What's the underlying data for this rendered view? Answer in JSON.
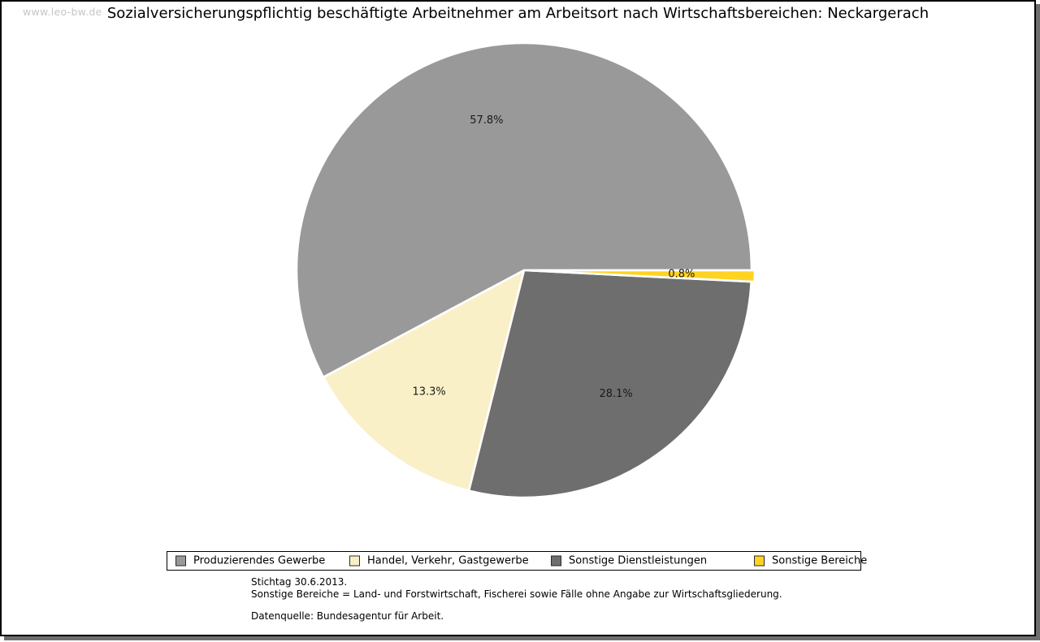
{
  "page": {
    "watermark": "www.leo-bw.de",
    "title": "Sozialversicherungspflichtig beschäftigte Arbeitnehmer am Arbeitsort nach Wirtschaftsbereichen: Neckargerach"
  },
  "chart_data": {
    "type": "pie",
    "title": "Sozialversicherungspflichtig beschäftigte Arbeitnehmer am Arbeitsort nach Wirtschaftsbereichen: Neckargerach",
    "unit": "percent",
    "start_angle_deg": 0,
    "direction": "counterclockwise",
    "slice_border_color": "#FFFFFF",
    "label_color": "#1A1A1A",
    "legend_position": "bottom",
    "slices": [
      {
        "label": "Produzierendes Gewerbe",
        "value": 57.8,
        "display": "57.8%",
        "color": "#999999",
        "exploded": false
      },
      {
        "label": "Handel, Verkehr, Gastgewerbe",
        "value": 13.3,
        "display": "13.3%",
        "color": "#FAF0C8",
        "exploded": false
      },
      {
        "label": "Sonstige Dienstleistungen",
        "value": 28.1,
        "display": "28.1%",
        "color": "#6E6E6E",
        "exploded": false
      },
      {
        "label": "Sonstige Bereiche",
        "value": 0.8,
        "display": "0.8%",
        "color": "#FFD320",
        "exploded": true
      }
    ]
  },
  "footnotes": {
    "line1": "Stichtag 30.6.2013.",
    "line2": "Sonstige Bereiche = Land- und Forstwirtschaft, Fischerei sowie Fälle ohne Angabe zur Wirtschaftsgliederung.",
    "source": "Datenquelle: Bundesagentur für Arbeit."
  }
}
